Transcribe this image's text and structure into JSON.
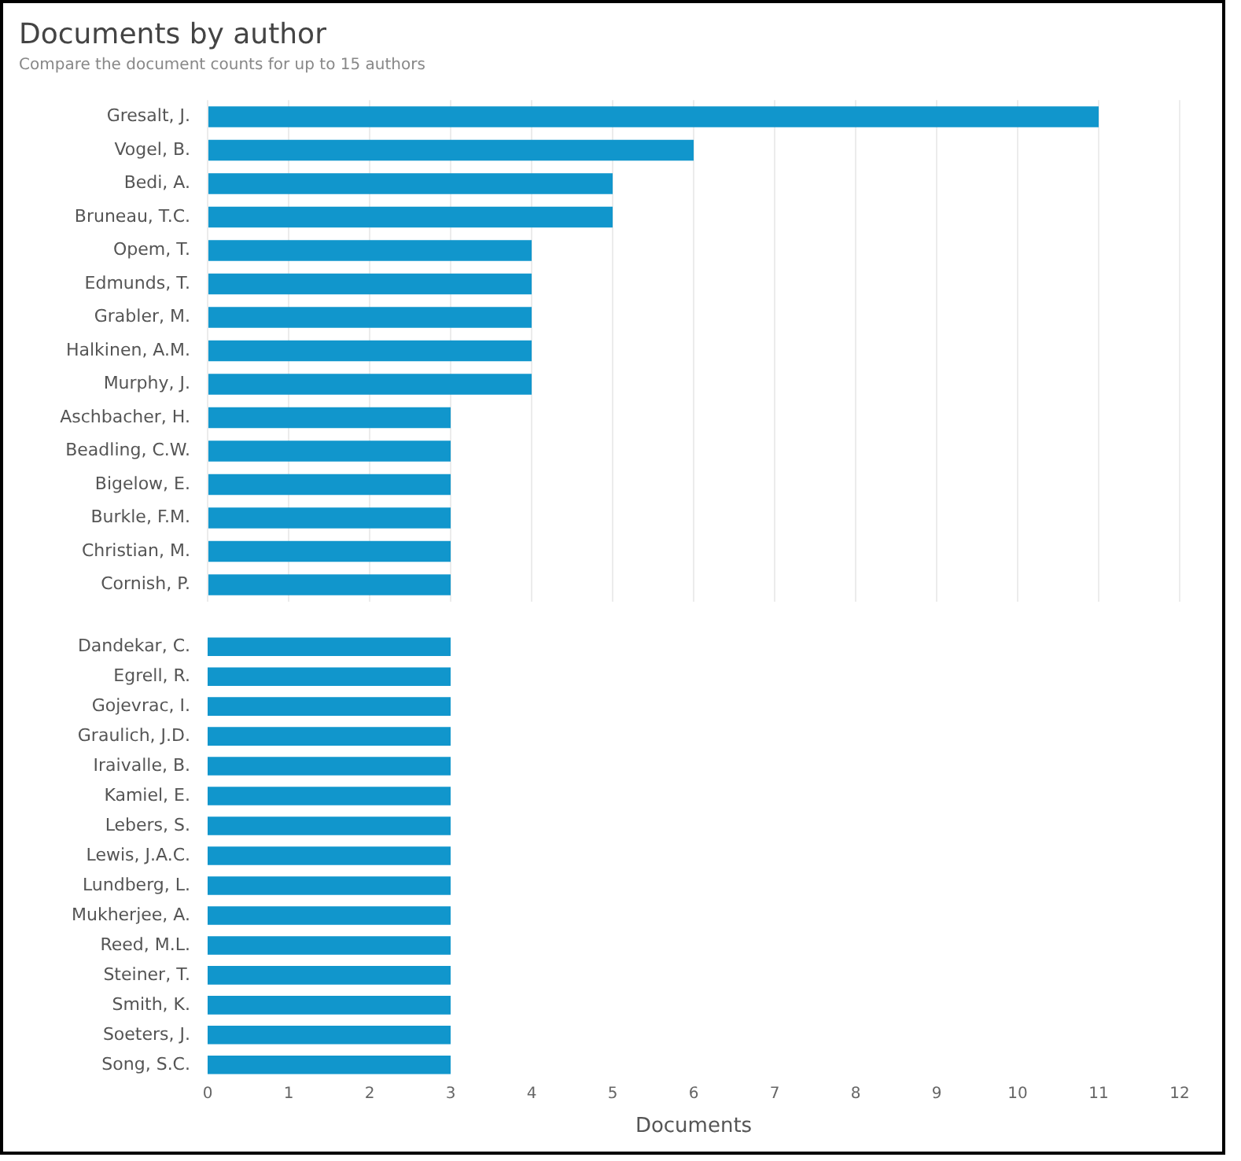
{
  "chart_data": [
    {
      "type": "bar",
      "orientation": "horizontal",
      "title": "Documents by author",
      "subtitle": "Compare the document counts for up to 15 authors",
      "categories": [
        "Gresalt, J.",
        "Vogel, B.",
        "Bedi, A.",
        "Bruneau, T.C.",
        "Opem, T.",
        "Edmunds, T.",
        "Grabler, M.",
        "Halkinen, A.M.",
        "Murphy, J.",
        "Aschbacher, H.",
        "Beadling, C.W.",
        "Bigelow, E.",
        "Burkle, F.M.",
        "Christian, M.",
        "Cornish, P."
      ],
      "values": [
        11,
        6,
        5,
        5,
        4,
        4,
        4,
        4,
        4,
        3,
        3,
        3,
        3,
        3,
        3
      ],
      "color": "#1196cc",
      "xlim": [
        0,
        12
      ],
      "xticks": [
        0,
        1,
        2,
        3,
        4,
        5,
        6,
        7,
        8,
        9,
        10,
        11,
        12
      ],
      "grid": "x",
      "tick_labels": "y",
      "legend": false
    },
    {
      "type": "bar",
      "orientation": "horizontal",
      "xlabel": "Documents",
      "categories": [
        "Dandekar, C.",
        "Egrell, R.",
        "Gojevrac, I.",
        "Graulich, J.D.",
        "Iraivalle, B.",
        "Kamiel, E.",
        "Lebers, S.",
        "Lewis, J.A.C.",
        "Lundberg, L.",
        "Mukherjee, A.",
        "Reed, M.L.",
        "Steiner, T.",
        "Smith, K.",
        "Soeters, J.",
        "Song, S.C."
      ],
      "values": [
        3,
        3,
        3,
        3,
        3,
        3,
        3,
        3,
        3,
        3,
        3,
        3,
        3,
        3,
        3
      ],
      "color": "#1196cc",
      "xlim": [
        0,
        12
      ],
      "xticks": [
        0,
        1,
        2,
        3,
        4,
        5,
        6,
        7,
        8,
        9,
        10,
        11,
        12
      ],
      "legend": false
    }
  ]
}
